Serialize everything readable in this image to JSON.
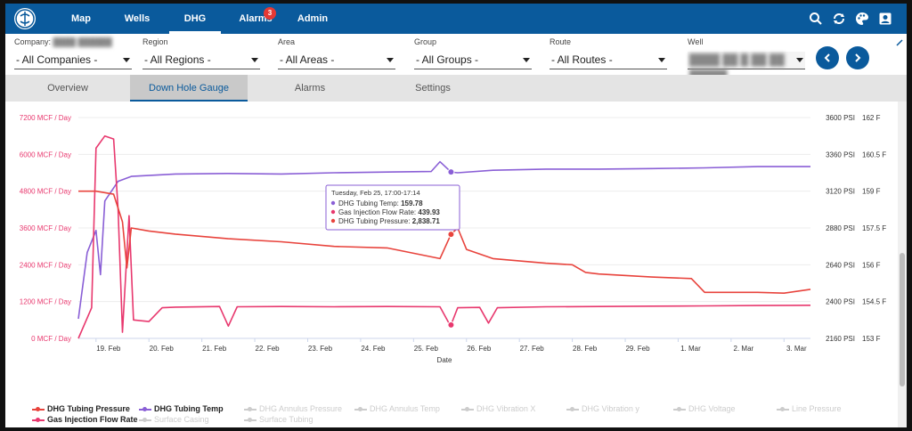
{
  "nav": {
    "tabs": [
      {
        "label": "Map"
      },
      {
        "label": "Wells"
      },
      {
        "label": "DHG"
      },
      {
        "label": "Alarms",
        "badge": "3"
      },
      {
        "label": "Admin"
      }
    ],
    "active_tab": "DHG",
    "icons": [
      "search-icon",
      "refresh-icon",
      "palette-icon",
      "account-icon"
    ]
  },
  "filters": {
    "company": {
      "label": "Company:",
      "value": "- All Companies -"
    },
    "region": {
      "label": "Region",
      "value": "- All Regions -"
    },
    "area": {
      "label": "Area",
      "value": "- All Areas -"
    },
    "group": {
      "label": "Group",
      "value": "- All Groups -"
    },
    "route": {
      "label": "Route",
      "value": "- All Routes -"
    },
    "well": {
      "label": "Well"
    }
  },
  "subtabs": [
    {
      "label": "Overview"
    },
    {
      "label": "Down Hole Gauge"
    },
    {
      "label": "Alarms"
    },
    {
      "label": "Settings"
    }
  ],
  "active_subtab": "Down Hole Gauge",
  "colors": {
    "nav": "#0a5a9c",
    "tubing_pressure": "#e8433c",
    "tubing_temp": "#8a5fd6",
    "gas_injection": "#e8386e"
  },
  "chart_data": {
    "type": "line",
    "xlabel": "Date",
    "x_ticks": [
      "19. Feb",
      "20. Feb",
      "21. Feb",
      "22. Feb",
      "23. Feb",
      "24. Feb",
      "25. Feb",
      "26. Feb",
      "27. Feb",
      "28. Feb",
      "29. Feb",
      "1. Mar",
      "2. Mar",
      "3. Mar"
    ],
    "x_range": [
      "2024-02-18 16:00",
      "2024-03-03 12:00"
    ],
    "y_axes": [
      {
        "id": "flow",
        "side": "left",
        "unit": "MCF / Day",
        "ticks": [
          "7200 MCF / Day",
          "6000 MCF / Day",
          "4800 MCF / Day",
          "3600 MCF / Day",
          "2400 MCF / Day",
          "1200 MCF / Day",
          "0 MCF / Day"
        ],
        "range": [
          0,
          7200
        ]
      },
      {
        "id": "pressure",
        "side": "right",
        "unit": "PSI",
        "ticks": [
          "3600 PSI",
          "3360 PSI",
          "3120 PSI",
          "2880 PSI",
          "2640 PSI",
          "2400 PSI",
          "2160 PSI"
        ],
        "range": [
          2160,
          3600
        ]
      },
      {
        "id": "temp",
        "side": "right",
        "unit": "F",
        "ticks": [
          "162 F",
          "160.5 F",
          "159 F",
          "157.5 F",
          "156 F",
          "154.5 F",
          "153 F"
        ],
        "range": [
          153,
          162
        ]
      }
    ],
    "series": [
      {
        "name": "DHG Tubing Temp",
        "axis": "temp",
        "color": "#8a5fd6",
        "points": [
          [
            "2024-02-18 16:00",
            153.8
          ],
          [
            "2024-02-18 20:00",
            156.5
          ],
          [
            "2024-02-19 00:00",
            157.4
          ],
          [
            "2024-02-19 02:00",
            155.6
          ],
          [
            "2024-02-19 04:00",
            158.6
          ],
          [
            "2024-02-19 10:00",
            159.4
          ],
          [
            "2024-02-19 16:00",
            159.6
          ],
          [
            "2024-02-20 12:00",
            159.7
          ],
          [
            "2024-02-21 12:00",
            159.72
          ],
          [
            "2024-02-22 12:00",
            159.7
          ],
          [
            "2024-02-23 12:00",
            159.75
          ],
          [
            "2024-02-24 12:00",
            159.78
          ],
          [
            "2024-02-25 08:00",
            159.8
          ],
          [
            "2024-02-25 12:00",
            160.2
          ],
          [
            "2024-02-25 17:00",
            159.78
          ],
          [
            "2024-02-25 20:00",
            159.75
          ],
          [
            "2024-02-26 12:00",
            159.85
          ],
          [
            "2024-02-27 12:00",
            159.9
          ],
          [
            "2024-02-28 12:00",
            159.9
          ],
          [
            "2024-02-29 12:00",
            159.92
          ],
          [
            "2024-03-01 12:00",
            159.95
          ],
          [
            "2024-03-02 12:00",
            160.0
          ],
          [
            "2024-03-03 12:00",
            160.0
          ]
        ]
      },
      {
        "name": "Gas Injection Flow Rate",
        "axis": "flow",
        "color": "#e8386e",
        "points": [
          [
            "2024-02-18 16:00",
            0
          ],
          [
            "2024-02-18 22:00",
            1000
          ],
          [
            "2024-02-19 00:00",
            6200
          ],
          [
            "2024-02-19 04:00",
            6600
          ],
          [
            "2024-02-19 08:00",
            6500
          ],
          [
            "2024-02-19 10:00",
            4200
          ],
          [
            "2024-02-19 12:00",
            200
          ],
          [
            "2024-02-19 15:00",
            4000
          ],
          [
            "2024-02-19 17:00",
            600
          ],
          [
            "2024-02-20 00:00",
            550
          ],
          [
            "2024-02-20 06:00",
            1000
          ],
          [
            "2024-02-20 12:00",
            1020
          ],
          [
            "2024-02-21 08:00",
            1040
          ],
          [
            "2024-02-21 12:00",
            400
          ],
          [
            "2024-02-21 16:00",
            1030
          ],
          [
            "2024-02-22 12:00",
            1040
          ],
          [
            "2024-02-23 12:00",
            1030
          ],
          [
            "2024-02-24 12:00",
            1040
          ],
          [
            "2024-02-25 12:00",
            1030
          ],
          [
            "2024-02-25 16:00",
            500
          ],
          [
            "2024-02-25 17:00",
            439.93
          ],
          [
            "2024-02-25 20:00",
            1000
          ],
          [
            "2024-02-26 06:00",
            1010
          ],
          [
            "2024-02-26 10:00",
            500
          ],
          [
            "2024-02-26 14:00",
            1000
          ],
          [
            "2024-02-27 12:00",
            1030
          ],
          [
            "2024-02-28 12:00",
            1040
          ],
          [
            "2024-02-29 12:00",
            1050
          ],
          [
            "2024-03-01 12:00",
            1060
          ],
          [
            "2024-03-02 12:00",
            1070
          ],
          [
            "2024-03-03 12:00",
            1080
          ]
        ]
      },
      {
        "name": "DHG Tubing Pressure",
        "axis": "pressure",
        "color": "#e8433c",
        "points": [
          [
            "2024-02-18 16:00",
            3120
          ],
          [
            "2024-02-19 00:00",
            3120
          ],
          [
            "2024-02-19 08:00",
            3100
          ],
          [
            "2024-02-19 12:00",
            2920
          ],
          [
            "2024-02-19 14:00",
            2620
          ],
          [
            "2024-02-19 16:00",
            2880
          ],
          [
            "2024-02-20 00:00",
            2860
          ],
          [
            "2024-02-20 12:00",
            2840
          ],
          [
            "2024-02-21 12:00",
            2810
          ],
          [
            "2024-02-22 12:00",
            2790
          ],
          [
            "2024-02-23 12:00",
            2760
          ],
          [
            "2024-02-24 12:00",
            2750
          ],
          [
            "2024-02-25 12:00",
            2680
          ],
          [
            "2024-02-25 17:00",
            2838.71
          ],
          [
            "2024-02-25 20:00",
            2880
          ],
          [
            "2024-02-26 00:00",
            2740
          ],
          [
            "2024-02-26 12:00",
            2680
          ],
          [
            "2024-02-27 12:00",
            2650
          ],
          [
            "2024-02-28 00:00",
            2640
          ],
          [
            "2024-02-28 06:00",
            2590
          ],
          [
            "2024-02-28 12:00",
            2580
          ],
          [
            "2024-02-29 12:00",
            2560
          ],
          [
            "2024-03-01 06:00",
            2550
          ],
          [
            "2024-03-01 12:00",
            2460
          ],
          [
            "2024-03-02 12:00",
            2460
          ],
          [
            "2024-03-03 00:00",
            2455
          ],
          [
            "2024-03-03 12:00",
            2480
          ]
        ]
      }
    ],
    "tooltip": {
      "title": "Tuesday, Feb 25, 17:00-17:14",
      "rows": [
        {
          "name": "DHG Tubing Temp:",
          "value": "159.78",
          "color": "#8a5fd6"
        },
        {
          "name": "Gas Injection Flow Rate:",
          "value": "439.93",
          "color": "#e8386e"
        },
        {
          "name": "DHG Tubing Pressure:",
          "value": "2,838.71",
          "color": "#e8433c"
        }
      ]
    },
    "legend": [
      {
        "name": "DHG Tubing Pressure",
        "color": "#e8433c",
        "on": true
      },
      {
        "name": "DHG Tubing Temp",
        "color": "#8a5fd6",
        "on": true
      },
      {
        "name": "DHG Annulus Pressure",
        "color": "#cccccc",
        "on": false
      },
      {
        "name": "DHG Annulus Temp",
        "color": "#cccccc",
        "on": false
      },
      {
        "name": "DHG Vibration X",
        "color": "#cccccc",
        "on": false
      },
      {
        "name": "DHG Vibration y",
        "color": "#cccccc",
        "on": false
      },
      {
        "name": "DHG Voltage",
        "color": "#cccccc",
        "on": false
      },
      {
        "name": "Line Pressure",
        "color": "#cccccc",
        "on": false
      },
      {
        "name": "Gas Injection Flow Rate",
        "color": "#e8386e",
        "on": true
      },
      {
        "name": "Surface Casing",
        "color": "#cccccc",
        "on": false
      },
      {
        "name": "Surface Tubing",
        "color": "#cccccc",
        "on": false
      }
    ],
    "legend_position": "bottom-left",
    "grid": true
  }
}
